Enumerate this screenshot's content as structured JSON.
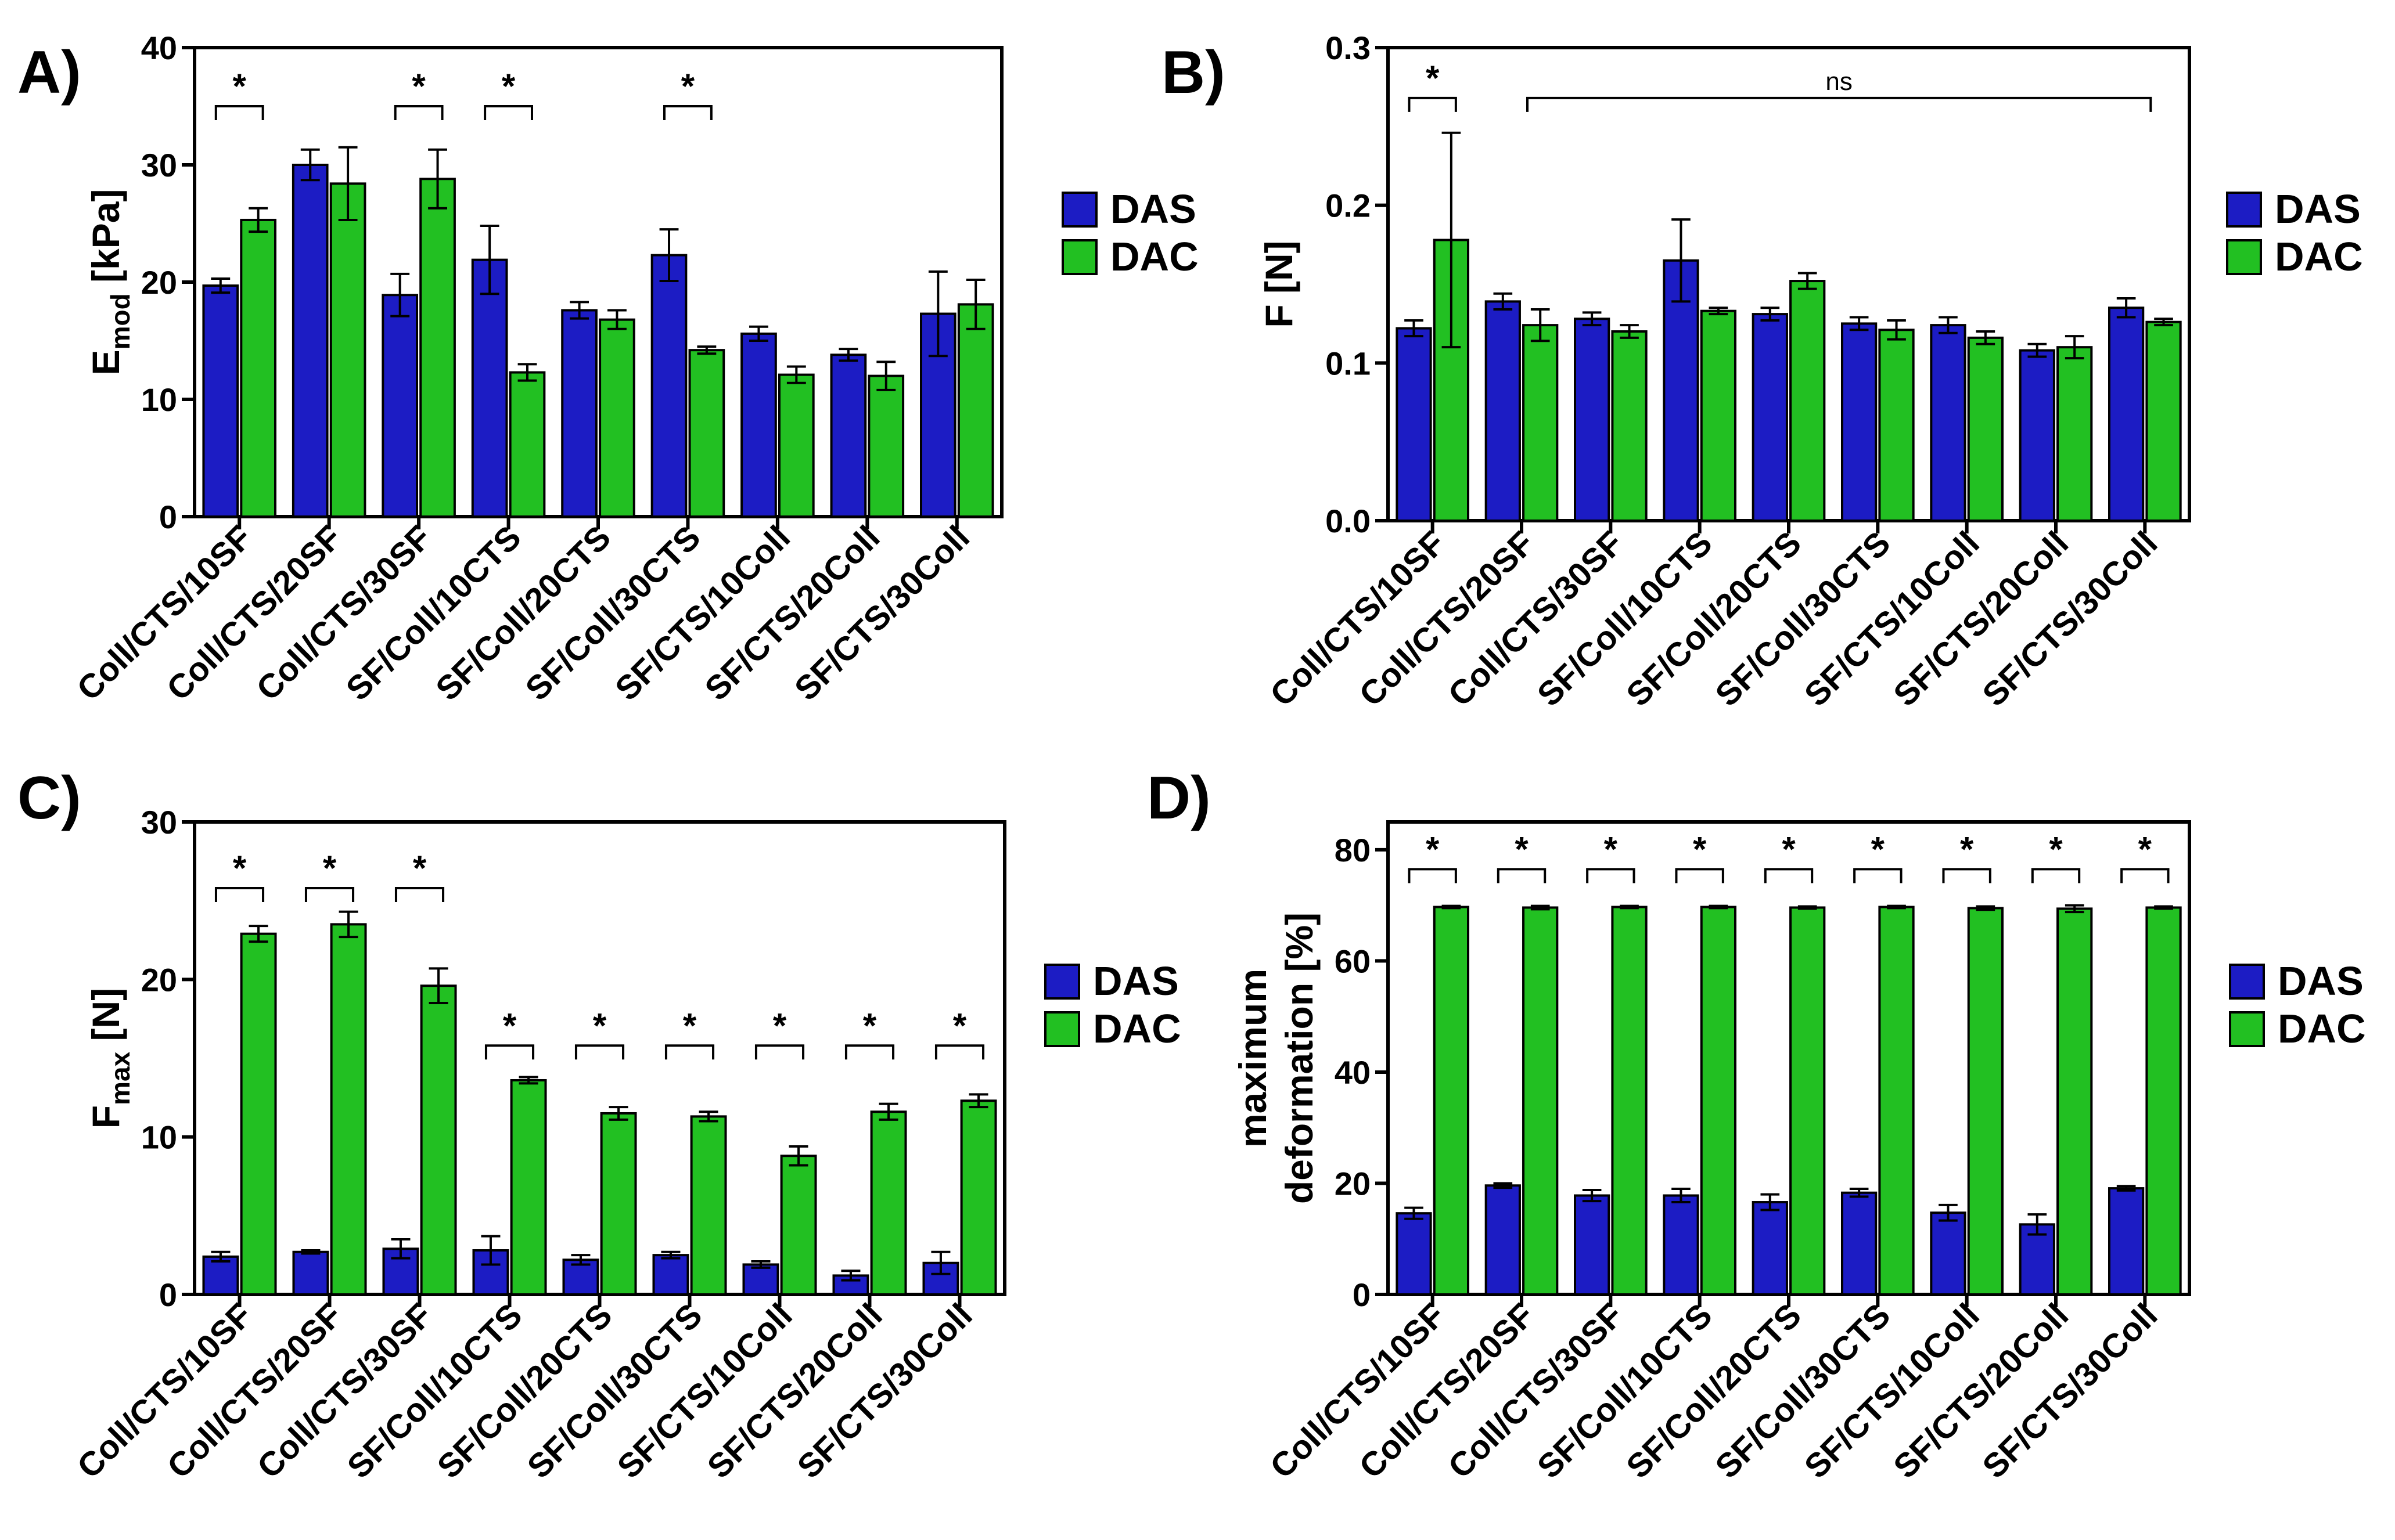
{
  "colors": {
    "DAS": "#1c1cc4",
    "DAC": "#22c022",
    "axis": "#000000"
  },
  "chart_data": [
    {
      "type": "bar",
      "panel_label": "A)",
      "title": "",
      "ylabel_main": "E",
      "ylabel_sub": "mod",
      "ylabel_tail": " [kPa]",
      "ylim": [
        0,
        40
      ],
      "yticks": [
        0,
        10,
        20,
        30,
        40
      ],
      "categories": [
        "Coll/CTS/10SF",
        "Coll/CTS/20SF",
        "Coll/CTS/30SF",
        "SF/Coll/10CTS",
        "SF/Coll/20CTS",
        "SF/Coll/30CTS",
        "SF/CTS/10Coll",
        "SF/CTS/20Coll",
        "SF/CTS/30Coll"
      ],
      "series": [
        {
          "name": "DAS",
          "values": [
            19.7,
            30.0,
            18.9,
            21.9,
            17.6,
            22.3,
            15.6,
            13.8,
            17.3
          ],
          "errors": [
            0.6,
            1.3,
            1.8,
            2.9,
            0.7,
            2.2,
            0.6,
            0.5,
            3.6
          ]
        },
        {
          "name": "DAC",
          "values": [
            25.3,
            28.4,
            28.8,
            12.3,
            16.8,
            14.2,
            12.1,
            12.0,
            18.1
          ],
          "errors": [
            1.0,
            3.1,
            2.5,
            0.7,
            0.8,
            0.3,
            0.7,
            1.2,
            2.1
          ]
        }
      ],
      "legend": [
        "DAS",
        "DAC"
      ],
      "annotations": [
        {
          "from": 0,
          "to": 0,
          "text": "*",
          "y": 35.0
        },
        {
          "from": 2,
          "to": 2,
          "text": "*",
          "y": 35.0
        },
        {
          "from": 3,
          "to": 3,
          "text": "*",
          "y": 35.0
        },
        {
          "from": 5,
          "to": 5,
          "text": "*",
          "y": 35.0
        }
      ]
    },
    {
      "type": "bar",
      "panel_label": "B)",
      "title": "",
      "ylabel_main": "F [N]",
      "ylabel_sub": "",
      "ylabel_tail": "",
      "ylim": [
        0,
        0.3
      ],
      "yticks": [
        "0.0",
        "0.1",
        "0.2",
        "0.3"
      ],
      "categories": [
        "Coll/CTS/10SF",
        "Coll/CTS/20SF",
        "Coll/CTS/30SF",
        "SF/Coll/10CTS",
        "SF/Coll/20CTS",
        "SF/Coll/30CTS",
        "SF/CTS/10Coll",
        "SF/CTS/20Coll",
        "SF/CTS/30Coll"
      ],
      "series": [
        {
          "name": "DAS",
          "values": [
            0.122,
            0.139,
            0.128,
            0.165,
            0.131,
            0.125,
            0.124,
            0.108,
            0.135
          ],
          "errors": [
            0.005,
            0.005,
            0.004,
            0.026,
            0.004,
            0.004,
            0.005,
            0.004,
            0.006
          ]
        },
        {
          "name": "DAC",
          "values": [
            0.178,
            0.124,
            0.12,
            0.133,
            0.152,
            0.121,
            0.116,
            0.11,
            0.126
          ],
          "errors": [
            0.068,
            0.01,
            0.004,
            0.002,
            0.005,
            0.006,
            0.004,
            0.007,
            0.002
          ]
        }
      ],
      "legend": [
        "DAS",
        "DAC"
      ],
      "annotations": [
        {
          "from": 0,
          "to": 0,
          "text": "*",
          "y": 0.268
        },
        {
          "from": 1,
          "to": 8,
          "text": "ns",
          "y": 0.268,
          "wide": true
        }
      ]
    },
    {
      "type": "bar",
      "panel_label": "C)",
      "title": "",
      "ylabel_main": "F",
      "ylabel_sub": "max",
      "ylabel_tail": " [N]",
      "ylim": [
        0,
        30
      ],
      "yticks": [
        0,
        10,
        20,
        30
      ],
      "categories": [
        "Coll/CTS/10SF",
        "Coll/CTS/20SF",
        "Coll/CTS/30SF",
        "SF/Coll/10CTS",
        "SF/Coll/20CTS",
        "SF/Coll/30CTS",
        "SF/CTS/10Coll",
        "SF/CTS/20Coll",
        "SF/CTS/30Coll"
      ],
      "series": [
        {
          "name": "DAS",
          "values": [
            2.4,
            2.7,
            2.9,
            2.8,
            2.2,
            2.5,
            1.9,
            1.2,
            2.0
          ],
          "errors": [
            0.3,
            0.1,
            0.6,
            0.9,
            0.3,
            0.2,
            0.2,
            0.3,
            0.7
          ]
        },
        {
          "name": "DAC",
          "values": [
            22.9,
            23.5,
            19.6,
            13.6,
            11.5,
            11.3,
            8.8,
            11.6,
            12.3
          ],
          "errors": [
            0.5,
            0.8,
            1.1,
            0.2,
            0.4,
            0.3,
            0.6,
            0.5,
            0.4
          ]
        }
      ],
      "legend": [
        "DAS",
        "DAC"
      ],
      "annotations": [
        {
          "from": 0,
          "to": 0,
          "text": "*",
          "y": 25.8
        },
        {
          "from": 1,
          "to": 1,
          "text": "*",
          "y": 25.8
        },
        {
          "from": 2,
          "to": 2,
          "text": "*",
          "y": 25.8
        },
        {
          "from": 3,
          "to": 3,
          "text": "*",
          "y": 15.8
        },
        {
          "from": 4,
          "to": 4,
          "text": "*",
          "y": 15.8
        },
        {
          "from": 5,
          "to": 5,
          "text": "*",
          "y": 15.8
        },
        {
          "from": 6,
          "to": 6,
          "text": "*",
          "y": 15.8
        },
        {
          "from": 7,
          "to": 7,
          "text": "*",
          "y": 15.8
        },
        {
          "from": 8,
          "to": 8,
          "text": "*",
          "y": 15.8
        }
      ]
    },
    {
      "type": "bar",
      "panel_label": "D)",
      "title": "",
      "ylabel_main": "maximum",
      "ylabel_sub": "",
      "ylabel_tail": "deformation [%]",
      "ylim": [
        0,
        85
      ],
      "yticks": [
        0,
        20,
        40,
        60,
        80
      ],
      "categories": [
        "Coll/CTS/10SF",
        "Coll/CTS/20SF",
        "Coll/CTS/30SF",
        "SF/Coll/10CTS",
        "SF/Coll/20CTS",
        "SF/Coll/30CTS",
        "SF/CTS/10Coll",
        "SF/CTS/20Coll",
        "SF/CTS/30Coll"
      ],
      "series": [
        {
          "name": "DAS",
          "values": [
            14.6,
            19.6,
            17.8,
            17.8,
            16.6,
            18.3,
            14.7,
            12.6,
            19.1
          ],
          "errors": [
            1.0,
            0.4,
            1.0,
            1.2,
            1.4,
            0.7,
            1.4,
            1.8,
            0.4
          ]
        },
        {
          "name": "DAC",
          "values": [
            69.7,
            69.6,
            69.7,
            69.7,
            69.6,
            69.7,
            69.5,
            69.4,
            69.6
          ],
          "errors": [
            0.2,
            0.3,
            0.2,
            0.2,
            0.2,
            0.2,
            0.3,
            0.6,
            0.2
          ]
        }
      ],
      "legend": [
        "DAS",
        "DAC"
      ],
      "annotations": [
        {
          "from": 0,
          "to": 0,
          "text": "*",
          "y": 76.5
        },
        {
          "from": 1,
          "to": 1,
          "text": "*",
          "y": 76.5
        },
        {
          "from": 2,
          "to": 2,
          "text": "*",
          "y": 76.5
        },
        {
          "from": 3,
          "to": 3,
          "text": "*",
          "y": 76.5
        },
        {
          "from": 4,
          "to": 4,
          "text": "*",
          "y": 76.5
        },
        {
          "from": 5,
          "to": 5,
          "text": "*",
          "y": 76.5
        },
        {
          "from": 6,
          "to": 6,
          "text": "*",
          "y": 76.5
        },
        {
          "from": 7,
          "to": 7,
          "text": "*",
          "y": 76.5
        },
        {
          "from": 8,
          "to": 8,
          "text": "*",
          "y": 76.5
        }
      ]
    }
  ]
}
